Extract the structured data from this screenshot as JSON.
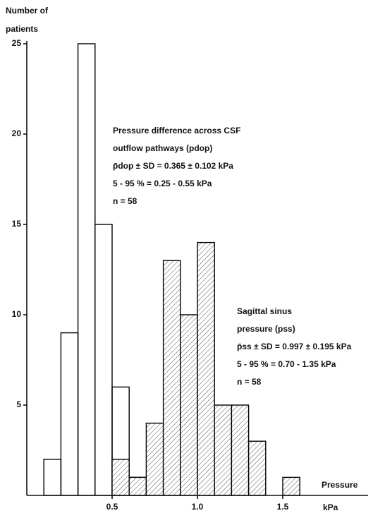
{
  "chart_data": {
    "type": "histogram",
    "ylabel": [
      "Number of",
      "patients"
    ],
    "xlabel": [
      "Pressure",
      "kPa"
    ],
    "xlim": [
      0,
      2
    ],
    "ylim": [
      0,
      25
    ],
    "xticks": [
      0.5,
      {
        "value": 1,
        "label": "1.0"
      },
      1.5
    ],
    "yticks": [
      5,
      10,
      15,
      20,
      25
    ],
    "series": [
      {
        "color": "#000000",
        "hatch": false,
        "bins": [
          0.1,
          0.2,
          0.3,
          0.4,
          0.5,
          0.6,
          0.7
        ],
        "values": [
          2,
          9,
          25,
          15,
          6,
          1
        ]
      },
      {
        "color": "#000000",
        "hatch": true,
        "bins": [
          0.5,
          0.6,
          0.7,
          0.8,
          0.9,
          1.0,
          1.1,
          1.2,
          1.3,
          1.4,
          1.5,
          1.6
        ],
        "values": [
          2,
          1,
          4,
          13,
          10,
          14,
          5,
          5,
          3,
          0,
          1
        ]
      }
    ],
    "annotations": [
      [
        "Pressure difference across CSF",
        "outflow pathways (pdop)",
        "p̄dop ± SD = 0.365 ± 0.102 kPa",
        "5 - 95 % = 0.25 - 0.55 kPa",
        "n = 58"
      ],
      [
        "Sagittal sinus",
        "pressure (pss)",
        "p̄ss ± SD = 0.997 ± 0.195 kPa",
        "5 - 95 % = 0.70 - 1.35 kPa",
        "n = 58"
      ]
    ]
  }
}
